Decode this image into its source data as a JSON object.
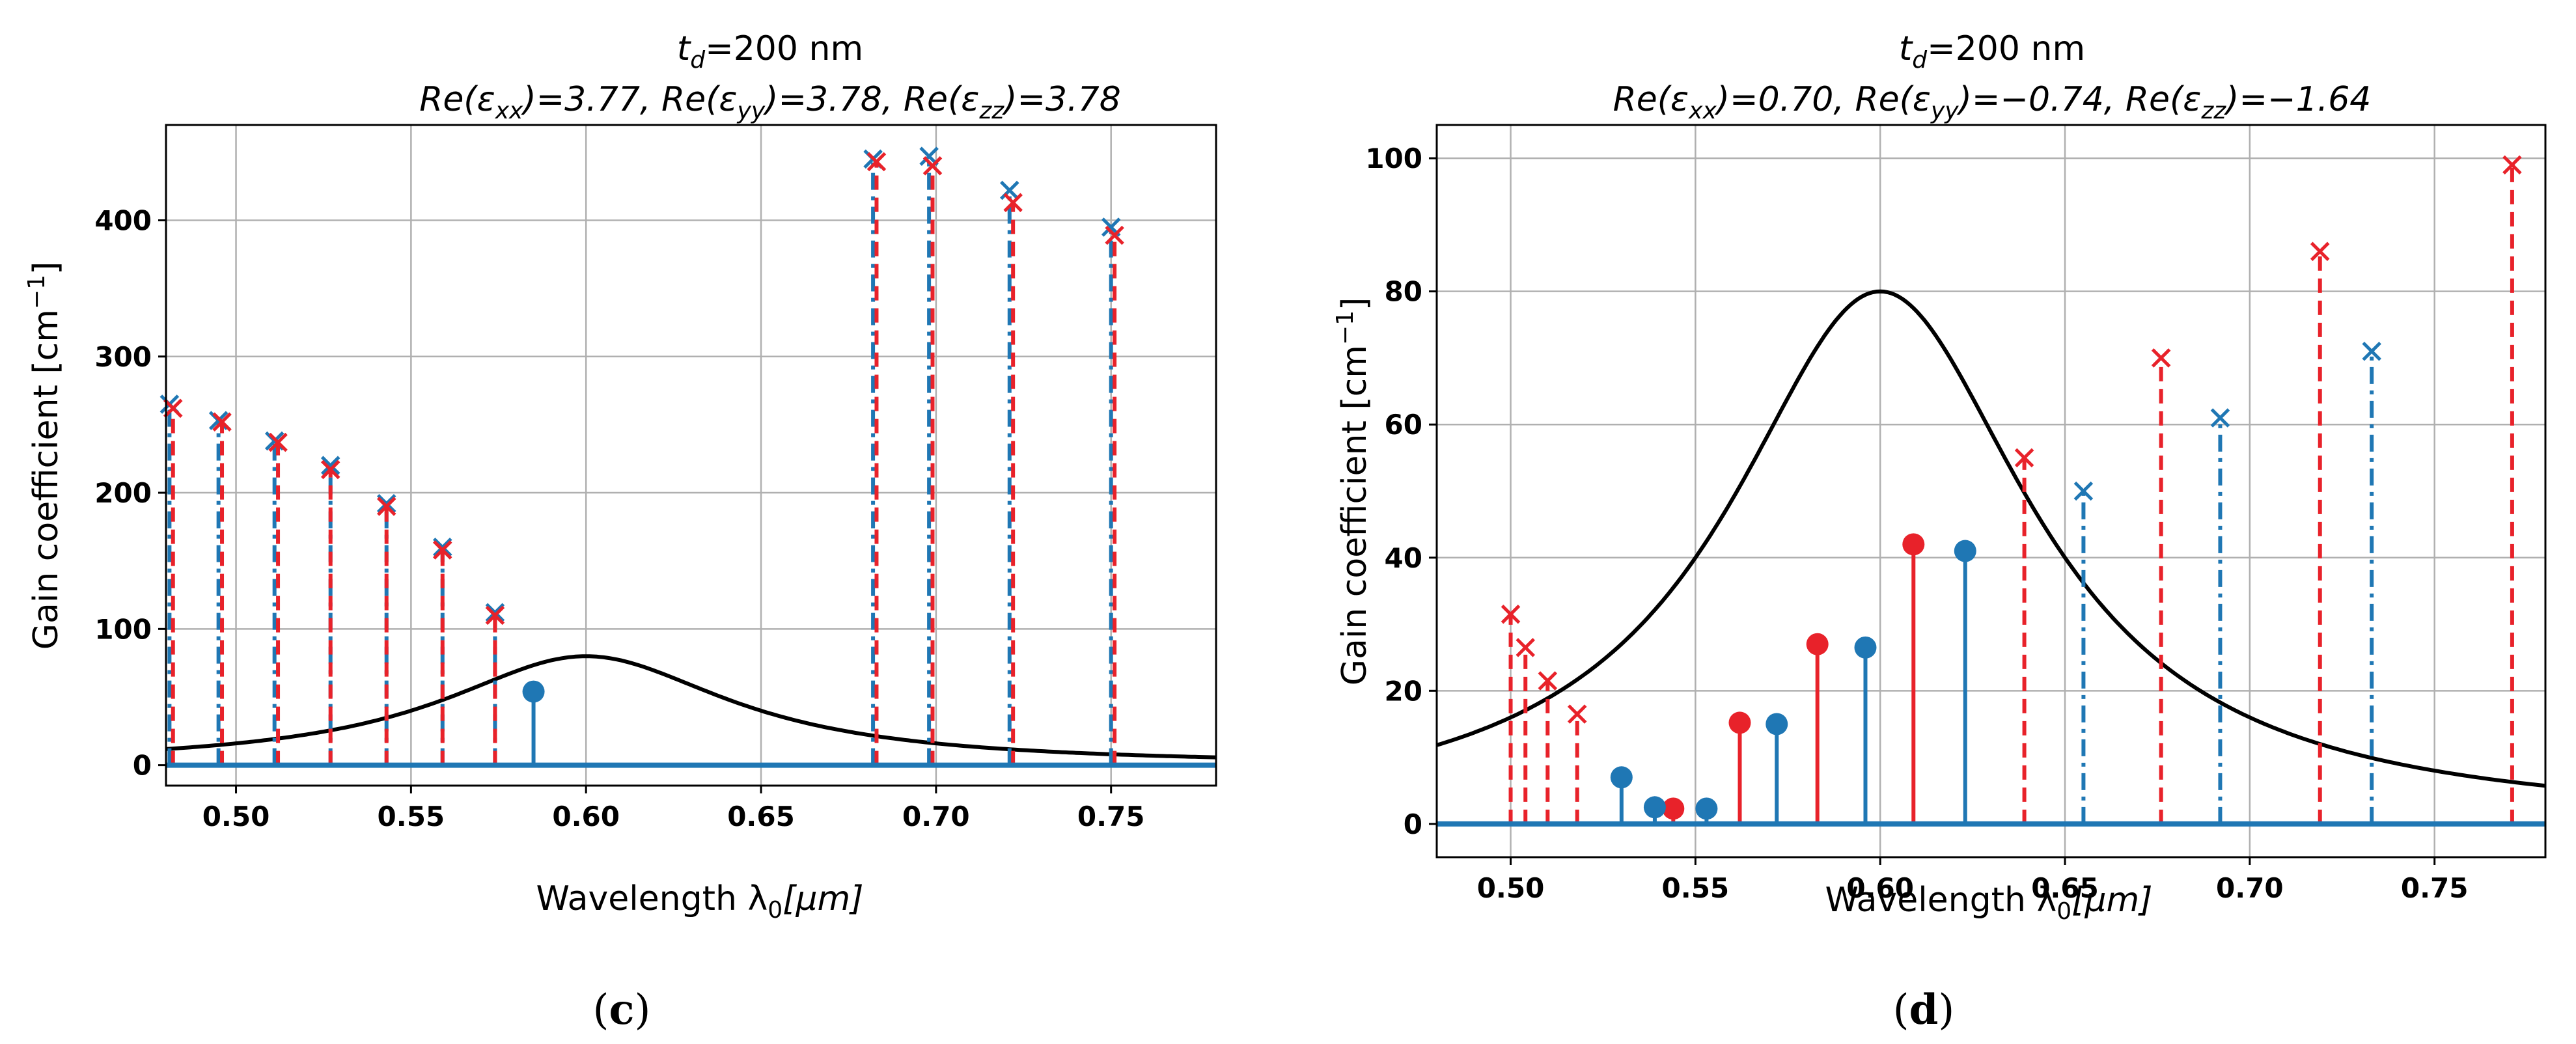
{
  "colors": {
    "blue": "#1f77b4",
    "red": "#e8222a",
    "black": "#000000",
    "grid": "#b0b0b0"
  },
  "chart_data": [
    {
      "type": "stem",
      "panel_label": {
        "open": "(",
        "letter": "c",
        "close": ")"
      },
      "title": {
        "line1_sym": "t",
        "line1_sub": "d",
        "line1_rest": "=200 nm",
        "line2_parts": [
          "Re(ε",
          "xx",
          ")=3.77, Re(ε",
          "yy",
          ")=3.78, Re(ε",
          "zz",
          ")=3.78"
        ]
      },
      "xlabel": {
        "text": "Wavelength λ",
        "sub": "0",
        "unit": "[μm]"
      },
      "ylabel": {
        "text": "Gain coefficient [cm",
        "sup": "−1",
        "close": "]"
      },
      "xlim": [
        0.48,
        0.78
      ],
      "ylim": [
        -15,
        470
      ],
      "xticks": [
        0.5,
        0.55,
        0.6,
        0.65,
        0.7,
        0.75
      ],
      "xtick_labels": [
        "0.50",
        "0.55",
        "0.60",
        "0.65",
        "0.70",
        "0.75"
      ],
      "yticks": [
        0,
        100,
        200,
        300,
        400
      ],
      "ytick_labels": [
        "0",
        "100",
        "200",
        "300",
        "400"
      ],
      "grid": true,
      "lorentzian": {
        "center": 0.6,
        "peak": 80,
        "hwhm": 0.05
      },
      "series": [
        {
          "name": "blue-dashdot-cross",
          "color": "blue",
          "style": "dashdot",
          "marker": "x",
          "x": [
            0.481,
            0.495,
            0.511,
            0.527,
            0.543,
            0.559,
            0.574,
            0.682,
            0.698,
            0.721,
            0.75
          ],
          "y": [
            265,
            253,
            238,
            220,
            192,
            160,
            112,
            445,
            447,
            422,
            395
          ]
        },
        {
          "name": "red-dashed-cross",
          "color": "red",
          "style": "dashed",
          "marker": "x",
          "x": [
            0.482,
            0.496,
            0.512,
            0.527,
            0.543,
            0.559,
            0.574,
            0.683,
            0.699,
            0.722,
            0.751
          ],
          "y": [
            262,
            252,
            237,
            217,
            190,
            158,
            110,
            443,
            440,
            413,
            389
          ]
        },
        {
          "name": "blue-solid-dot",
          "color": "blue",
          "style": "solid",
          "marker": "o",
          "x": [
            0.585
          ],
          "y": [
            54
          ]
        }
      ]
    },
    {
      "type": "stem",
      "panel_label": {
        "open": "(",
        "letter": "d",
        "close": ")"
      },
      "title": {
        "line1_sym": "t",
        "line1_sub": "d",
        "line1_rest": "=200 nm",
        "line2_parts": [
          "Re(ε",
          "xx",
          ")=0.70, Re(ε",
          "yy",
          ")=−0.74, Re(ε",
          "zz",
          ")=−1.64"
        ]
      },
      "xlabel": {
        "text": "Wavelength λ",
        "sub": "0",
        "unit": "[μm]"
      },
      "ylabel": {
        "text": "Gain coefficient [cm",
        "sup": "−1",
        "close": "]"
      },
      "xlim": [
        0.48,
        0.78
      ],
      "ylim": [
        -5,
        105
      ],
      "xticks": [
        0.5,
        0.55,
        0.6,
        0.65,
        0.7,
        0.75
      ],
      "xtick_labels": [
        "0.50",
        "0.55",
        "0.60",
        "0.65",
        "0.70",
        "0.75"
      ],
      "yticks": [
        0,
        20,
        40,
        60,
        80,
        100
      ],
      "ytick_labels": [
        "0",
        "20",
        "40",
        "60",
        "80",
        "100"
      ],
      "grid": true,
      "lorentzian": {
        "center": 0.6,
        "peak": 80,
        "hwhm": 0.05
      },
      "series": [
        {
          "name": "red-dashed-cross",
          "color": "red",
          "style": "dashed",
          "marker": "x",
          "x": [
            0.5,
            0.504,
            0.51,
            0.518,
            0.639,
            0.676,
            0.719,
            0.771
          ],
          "y": [
            31.5,
            26.5,
            21.5,
            16.5,
            55,
            70,
            86,
            99
          ]
        },
        {
          "name": "blue-dashdot-cross",
          "color": "blue",
          "style": "dashdot",
          "marker": "x",
          "x": [
            0.655,
            0.692,
            0.733
          ],
          "y": [
            50,
            61,
            71
          ]
        },
        {
          "name": "red-solid-dot",
          "color": "red",
          "style": "solid",
          "marker": "o",
          "x": [
            0.544,
            0.562,
            0.583,
            0.609
          ],
          "y": [
            2.3,
            15.2,
            27,
            42
          ]
        },
        {
          "name": "blue-solid-dot",
          "color": "blue",
          "style": "solid",
          "marker": "o",
          "x": [
            0.53,
            0.539,
            0.553,
            0.572,
            0.596,
            0.623
          ],
          "y": [
            7,
            2.5,
            2.3,
            15,
            26.5,
            41
          ]
        }
      ]
    }
  ]
}
